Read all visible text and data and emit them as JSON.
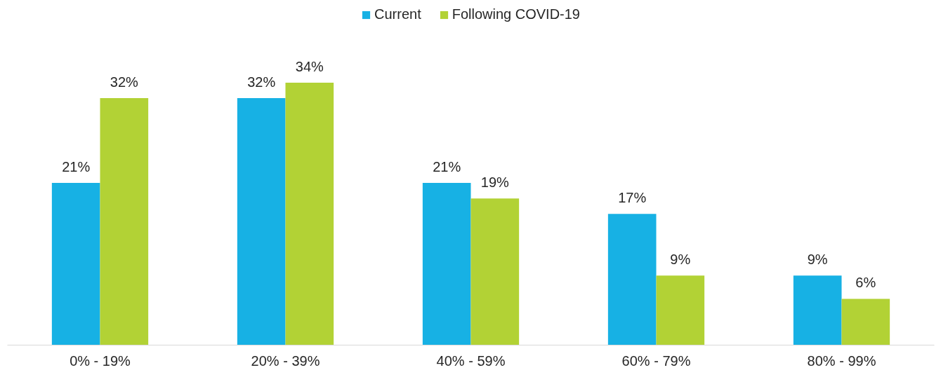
{
  "chart_data": {
    "type": "bar",
    "categories": [
      "0% - 19%",
      "20% - 39%",
      "40% - 59%",
      "60% - 79%",
      "80% - 99%"
    ],
    "series": [
      {
        "name": "Current",
        "color": "#17b1e4",
        "values": [
          21,
          32,
          21,
          17,
          9
        ],
        "value_labels": [
          "21%",
          "32%",
          "21%",
          "17%",
          "9%"
        ]
      },
      {
        "name": "Following COVID-19",
        "color": "#b2d235",
        "values": [
          32,
          34,
          19,
          9,
          6
        ],
        "value_labels": [
          "32%",
          "34%",
          "19%",
          "9%",
          "6%"
        ]
      }
    ],
    "legend": "top"
  }
}
